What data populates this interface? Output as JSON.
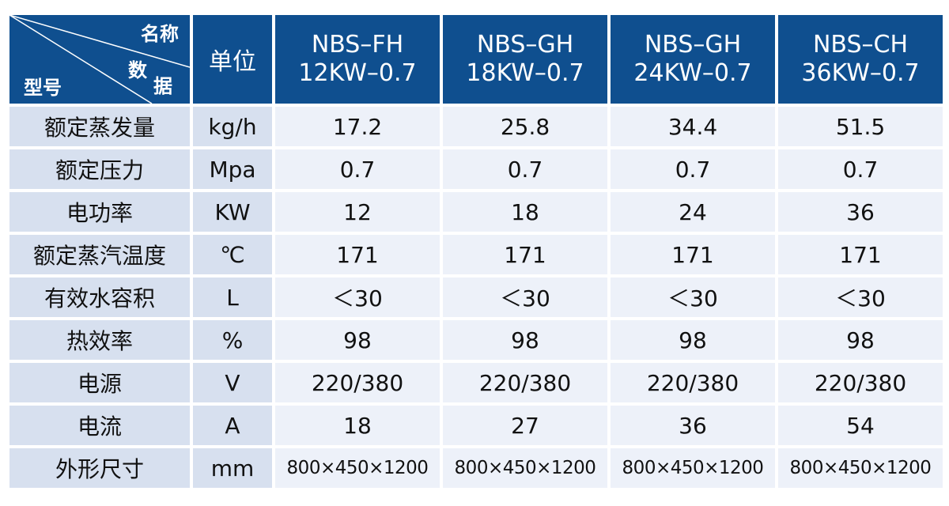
{
  "header": {
    "corner": {
      "name": "名称",
      "data": [
        "数",
        "据"
      ],
      "model": "型号"
    },
    "unit_label": "单位",
    "models": [
      {
        "line1": "NBS–FH",
        "line2": "12KW–0.7"
      },
      {
        "line1": "NBS–GH",
        "line2": "18KW–0.7"
      },
      {
        "line1": "NBS–GH",
        "line2": "24KW–0.7"
      },
      {
        "line1": "NBS–CH",
        "line2": "36KW–0.7"
      }
    ]
  },
  "rows": [
    {
      "label": "额定蒸发量",
      "unit": "kg/h",
      "values": [
        "17.2",
        "25.8",
        "34.4",
        "51.5"
      ]
    },
    {
      "label": "额定压力",
      "unit": "Mpa",
      "values": [
        "0.7",
        "0.7",
        "0.7",
        "0.7"
      ]
    },
    {
      "label": "电功率",
      "unit": "KW",
      "values": [
        "12",
        "18",
        "24",
        "36"
      ]
    },
    {
      "label": "额定蒸汽温度",
      "unit": "℃",
      "values": [
        "171",
        "171",
        "171",
        "171"
      ]
    },
    {
      "label": "有效水容积",
      "unit": "L",
      "values": [
        "＜30",
        "＜30",
        "＜30",
        "＜30"
      ]
    },
    {
      "label": "热效率",
      "unit": "%",
      "values": [
        "98",
        "98",
        "98",
        "98"
      ]
    },
    {
      "label": "电源",
      "unit": "V",
      "values": [
        "220/380",
        "220/380",
        "220/380",
        "220/380"
      ]
    },
    {
      "label": "电流",
      "unit": "A",
      "values": [
        "18",
        "27",
        "36",
        "54"
      ]
    },
    {
      "label": "外形尺寸",
      "unit": "mm",
      "values": [
        "800×450×1200",
        "800×450×1200",
        "800×450×1200",
        "800×450×1200"
      ]
    }
  ],
  "colors": {
    "header_bg": "#0f4f8f",
    "label_bg": "#d7e0ef",
    "cell_bg": "#edf1f9"
  }
}
